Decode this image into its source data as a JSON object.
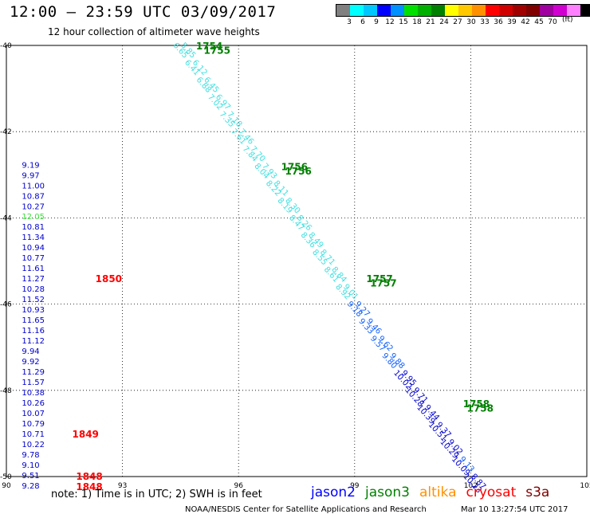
{
  "header": {
    "title": "12:00 – 23:59 UTC 03/09/2017",
    "subtitle": "12 hour collection of altimeter wave heights"
  },
  "colorbar": {
    "colors": [
      "#808080",
      "#00ffff",
      "#00c8ff",
      "#0000ff",
      "#0090ff",
      "#00e000",
      "#00b000",
      "#008000",
      "#ffff00",
      "#ffc800",
      "#ff9000",
      "#ff0000",
      "#d00000",
      "#a00000",
      "#800000",
      "#a000a0",
      "#d000d0",
      "#ff80ff",
      "#000000"
    ],
    "labels": [
      "3",
      "6",
      "9",
      "12",
      "15",
      "18",
      "21",
      "24",
      "27",
      "30",
      "33",
      "36",
      "39",
      "42",
      "45",
      "70"
    ],
    "unit": "(ft)"
  },
  "legend": [
    {
      "label": "jason2",
      "color": "#0000ff"
    },
    {
      "label": "jason3",
      "color": "#008000"
    },
    {
      "label": "altika",
      "color": "#ff9000"
    },
    {
      "label": "cryosat",
      "color": "#ff0000"
    },
    {
      "label": "s3a",
      "color": "#800000"
    }
  ],
  "footer": {
    "note": "note:  1) Time is in UTC;  2) SWH is in feet",
    "credit": "NOAA/NESDIS Center for Satellite Applications and Research",
    "generated": "Mar 10 13:27:54 UTC 2017"
  },
  "chart_data": {
    "type": "scatter",
    "xlim": [
      90,
      105
    ],
    "ylim": [
      -50,
      -40
    ],
    "x_ticks": [
      "90",
      "93",
      "96",
      "99",
      "102",
      "105"
    ],
    "y_ticks": [
      "-40",
      "-42",
      "-44",
      "-46",
      "-48",
      "-50"
    ],
    "grid": true,
    "left_column": {
      "x": 90.4,
      "points": [
        {
          "y": -42.76,
          "v": "9.19",
          "color": "#0000cd"
        },
        {
          "y": -43.0,
          "v": "9.97",
          "color": "#0000cd"
        },
        {
          "y": -43.24,
          "v": "11.00",
          "color": "#0000cd"
        },
        {
          "y": -43.48,
          "v": "10.87",
          "color": "#0000cd"
        },
        {
          "y": -43.72,
          "v": "10.27",
          "color": "#0000cd"
        },
        {
          "y": -43.96,
          "v": "12.05",
          "color": "#40e040"
        },
        {
          "y": -44.2,
          "v": "10.81",
          "color": "#0000cd"
        },
        {
          "y": -44.44,
          "v": "11.34",
          "color": "#0000cd"
        },
        {
          "y": -44.68,
          "v": "10.94",
          "color": "#0000cd"
        },
        {
          "y": -44.92,
          "v": "10.77",
          "color": "#0000cd"
        },
        {
          "y": -45.16,
          "v": "11.61",
          "color": "#0000cd"
        },
        {
          "y": -45.4,
          "v": "11.27",
          "color": "#0000cd"
        },
        {
          "y": -45.64,
          "v": "10.28",
          "color": "#0000cd"
        },
        {
          "y": -45.88,
          "v": "11.52",
          "color": "#0000cd"
        },
        {
          "y": -46.12,
          "v": "10.93",
          "color": "#0000cd"
        },
        {
          "y": -46.36,
          "v": "11.65",
          "color": "#0000cd"
        },
        {
          "y": -46.6,
          "v": "11.16",
          "color": "#0000cd"
        },
        {
          "y": -46.84,
          "v": "11.12",
          "color": "#0000cd"
        },
        {
          "y": -47.08,
          "v": "9.94",
          "color": "#0000cd"
        },
        {
          "y": -47.32,
          "v": "9.92",
          "color": "#0000cd"
        },
        {
          "y": -47.56,
          "v": "11.29",
          "color": "#0000cd"
        },
        {
          "y": -47.8,
          "v": "11.57",
          "color": "#0000cd"
        },
        {
          "y": -48.04,
          "v": "10.38",
          "color": "#0000cd"
        },
        {
          "y": -48.28,
          "v": "10.26",
          "color": "#0000cd"
        },
        {
          "y": -48.52,
          "v": "10.07",
          "color": "#0000cd"
        },
        {
          "y": -48.76,
          "v": "10.79",
          "color": "#0000cd"
        },
        {
          "y": -49.0,
          "v": "10.71",
          "color": "#0000cd"
        },
        {
          "y": -49.24,
          "v": "10.22",
          "color": "#0000cd"
        },
        {
          "y": -49.48,
          "v": "9.78",
          "color": "#0000cd"
        },
        {
          "y": -49.72,
          "v": "9.10",
          "color": "#0000cd"
        },
        {
          "y": -49.96,
          "v": "9.51",
          "color": "#0000cd"
        },
        {
          "y": -50.2,
          "v": "9.28",
          "color": "#0000cd"
        }
      ]
    },
    "time_labels": [
      {
        "x": 92.3,
        "y": -45.4,
        "label": "1850",
        "color": "#ff0000"
      },
      {
        "x": 91.7,
        "y": -49.0,
        "label": "1849",
        "color": "#ff0000"
      },
      {
        "x": 91.8,
        "y": -49.98,
        "label": "1848",
        "color": "#ff0000"
      },
      {
        "x": 91.8,
        "y": -50.22,
        "label": "1848",
        "color": "#ff0000"
      },
      {
        "x": 94.9,
        "y": -40.0,
        "label": "1754",
        "color": "#008000"
      },
      {
        "x": 95.1,
        "y": -40.1,
        "label": "1755",
        "color": "#008000"
      },
      {
        "x": 97.1,
        "y": -42.8,
        "label": "1756",
        "color": "#008000"
      },
      {
        "x": 97.2,
        "y": -42.9,
        "label": "1756",
        "color": "#008000"
      },
      {
        "x": 99.3,
        "y": -45.4,
        "label": "1757",
        "color": "#008000"
      },
      {
        "x": 99.4,
        "y": -45.5,
        "label": "1757",
        "color": "#008000"
      },
      {
        "x": 101.8,
        "y": -48.3,
        "label": "1758",
        "color": "#008000"
      },
      {
        "x": 101.9,
        "y": -48.4,
        "label": "1758",
        "color": "#008000"
      }
    ],
    "tracks": [
      {
        "name": "",
        "points": [
          {
            "x": 94.3,
            "y": -40.0,
            "v": "6.65",
            "color": "#40e0e0"
          },
          {
            "x": 94.6,
            "y": -40.4,
            "v": "6.41",
            "color": "#40e0e0"
          },
          {
            "x": 94.9,
            "y": -40.8,
            "v": "6.88",
            "color": "#40e0e0"
          },
          {
            "x": 95.2,
            "y": -41.2,
            "v": "7.02",
            "color": "#40e0e0"
          },
          {
            "x": 95.5,
            "y": -41.6,
            "v": "7.35",
            "color": "#40e0e0"
          },
          {
            "x": 95.8,
            "y": -42.0,
            "v": "7.61",
            "color": "#40e0e0"
          },
          {
            "x": 96.1,
            "y": -42.4,
            "v": "7.84",
            "color": "#40e0e0"
          },
          {
            "x": 96.4,
            "y": -42.8,
            "v": "8.04",
            "color": "#40e0e0"
          },
          {
            "x": 96.7,
            "y": -43.2,
            "v": "8.22",
            "color": "#40e0e0"
          },
          {
            "x": 97.0,
            "y": -43.6,
            "v": "8.19",
            "color": "#40e0e0"
          },
          {
            "x": 97.3,
            "y": -44.0,
            "v": "8.47",
            "color": "#40e0e0"
          },
          {
            "x": 97.6,
            "y": -44.4,
            "v": "8.36",
            "color": "#40e0e0"
          },
          {
            "x": 97.9,
            "y": -44.8,
            "v": "8.55",
            "color": "#40e0e0"
          },
          {
            "x": 98.2,
            "y": -45.2,
            "v": "8.61",
            "color": "#40e0e0"
          },
          {
            "x": 98.5,
            "y": -45.6,
            "v": "8.92",
            "color": "#40e0e0"
          },
          {
            "x": 98.8,
            "y": -46.0,
            "v": "9.18",
            "color": "#1060ff"
          },
          {
            "x": 99.1,
            "y": -46.4,
            "v": "9.33",
            "color": "#1060ff"
          },
          {
            "x": 99.4,
            "y": -46.8,
            "v": "9.57",
            "color": "#1060ff"
          },
          {
            "x": 99.7,
            "y": -47.2,
            "v": "9.80",
            "color": "#1060ff"
          },
          {
            "x": 100.0,
            "y": -47.6,
            "v": "10.02",
            "color": "#0000cd"
          },
          {
            "x": 100.3,
            "y": -48.0,
            "v": "10.28",
            "color": "#0000cd"
          },
          {
            "x": 100.6,
            "y": -48.4,
            "v": "10.39",
            "color": "#0000cd"
          },
          {
            "x": 100.9,
            "y": -48.8,
            "v": "10.51",
            "color": "#0000cd"
          },
          {
            "x": 101.2,
            "y": -49.2,
            "v": "10.29",
            "color": "#0000cd"
          },
          {
            "x": 101.5,
            "y": -49.6,
            "v": "10.09",
            "color": "#0000cd"
          },
          {
            "x": 101.8,
            "y": -50.0,
            "v": "10.23",
            "color": "#0000cd"
          }
        ]
      },
      {
        "name": "",
        "points": [
          {
            "x": 94.5,
            "y": -40.0,
            "v": "5.85",
            "color": "#40e0e0"
          },
          {
            "x": 94.8,
            "y": -40.4,
            "v": "6.12",
            "color": "#40e0e0"
          },
          {
            "x": 95.1,
            "y": -40.8,
            "v": "6.45",
            "color": "#40e0e0"
          },
          {
            "x": 95.4,
            "y": -41.2,
            "v": "6.97",
            "color": "#40e0e0"
          },
          {
            "x": 95.7,
            "y": -41.6,
            "v": "7.18",
            "color": "#40e0e0"
          },
          {
            "x": 96.0,
            "y": -42.0,
            "v": "7.46",
            "color": "#40e0e0"
          },
          {
            "x": 96.3,
            "y": -42.4,
            "v": "7.70",
            "color": "#40e0e0"
          },
          {
            "x": 96.6,
            "y": -42.8,
            "v": "7.93",
            "color": "#40e0e0"
          },
          {
            "x": 96.9,
            "y": -43.2,
            "v": "8.11",
            "color": "#40e0e0"
          },
          {
            "x": 97.2,
            "y": -43.6,
            "v": "8.30",
            "color": "#40e0e0"
          },
          {
            "x": 97.5,
            "y": -44.0,
            "v": "8.26",
            "color": "#40e0e0"
          },
          {
            "x": 97.8,
            "y": -44.4,
            "v": "8.49",
            "color": "#40e0e0"
          },
          {
            "x": 98.1,
            "y": -44.8,
            "v": "8.71",
            "color": "#40e0e0"
          },
          {
            "x": 98.4,
            "y": -45.2,
            "v": "8.84",
            "color": "#40e0e0"
          },
          {
            "x": 98.7,
            "y": -45.6,
            "v": "9.01",
            "color": "#40e0e0"
          },
          {
            "x": 99.0,
            "y": -46.0,
            "v": "9.27",
            "color": "#1060ff"
          },
          {
            "x": 99.3,
            "y": -46.4,
            "v": "9.46",
            "color": "#1060ff"
          },
          {
            "x": 99.6,
            "y": -46.8,
            "v": "9.62",
            "color": "#1060ff"
          },
          {
            "x": 99.9,
            "y": -47.2,
            "v": "9.88",
            "color": "#1060ff"
          },
          {
            "x": 100.2,
            "y": -47.6,
            "v": "9.95",
            "color": "#0000cd"
          },
          {
            "x": 100.5,
            "y": -48.0,
            "v": "9.71",
            "color": "#0000cd"
          },
          {
            "x": 100.8,
            "y": -48.4,
            "v": "9.44",
            "color": "#0000cd"
          },
          {
            "x": 101.1,
            "y": -48.8,
            "v": "9.37",
            "color": "#0000cd"
          },
          {
            "x": 101.4,
            "y": -49.2,
            "v": "9.02",
            "color": "#0000cd"
          },
          {
            "x": 101.7,
            "y": -49.6,
            "v": "9.13",
            "color": "#1060ff"
          },
          {
            "x": 102.0,
            "y": -50.0,
            "v": "8.87",
            "color": "#0000cd"
          }
        ]
      }
    ]
  }
}
